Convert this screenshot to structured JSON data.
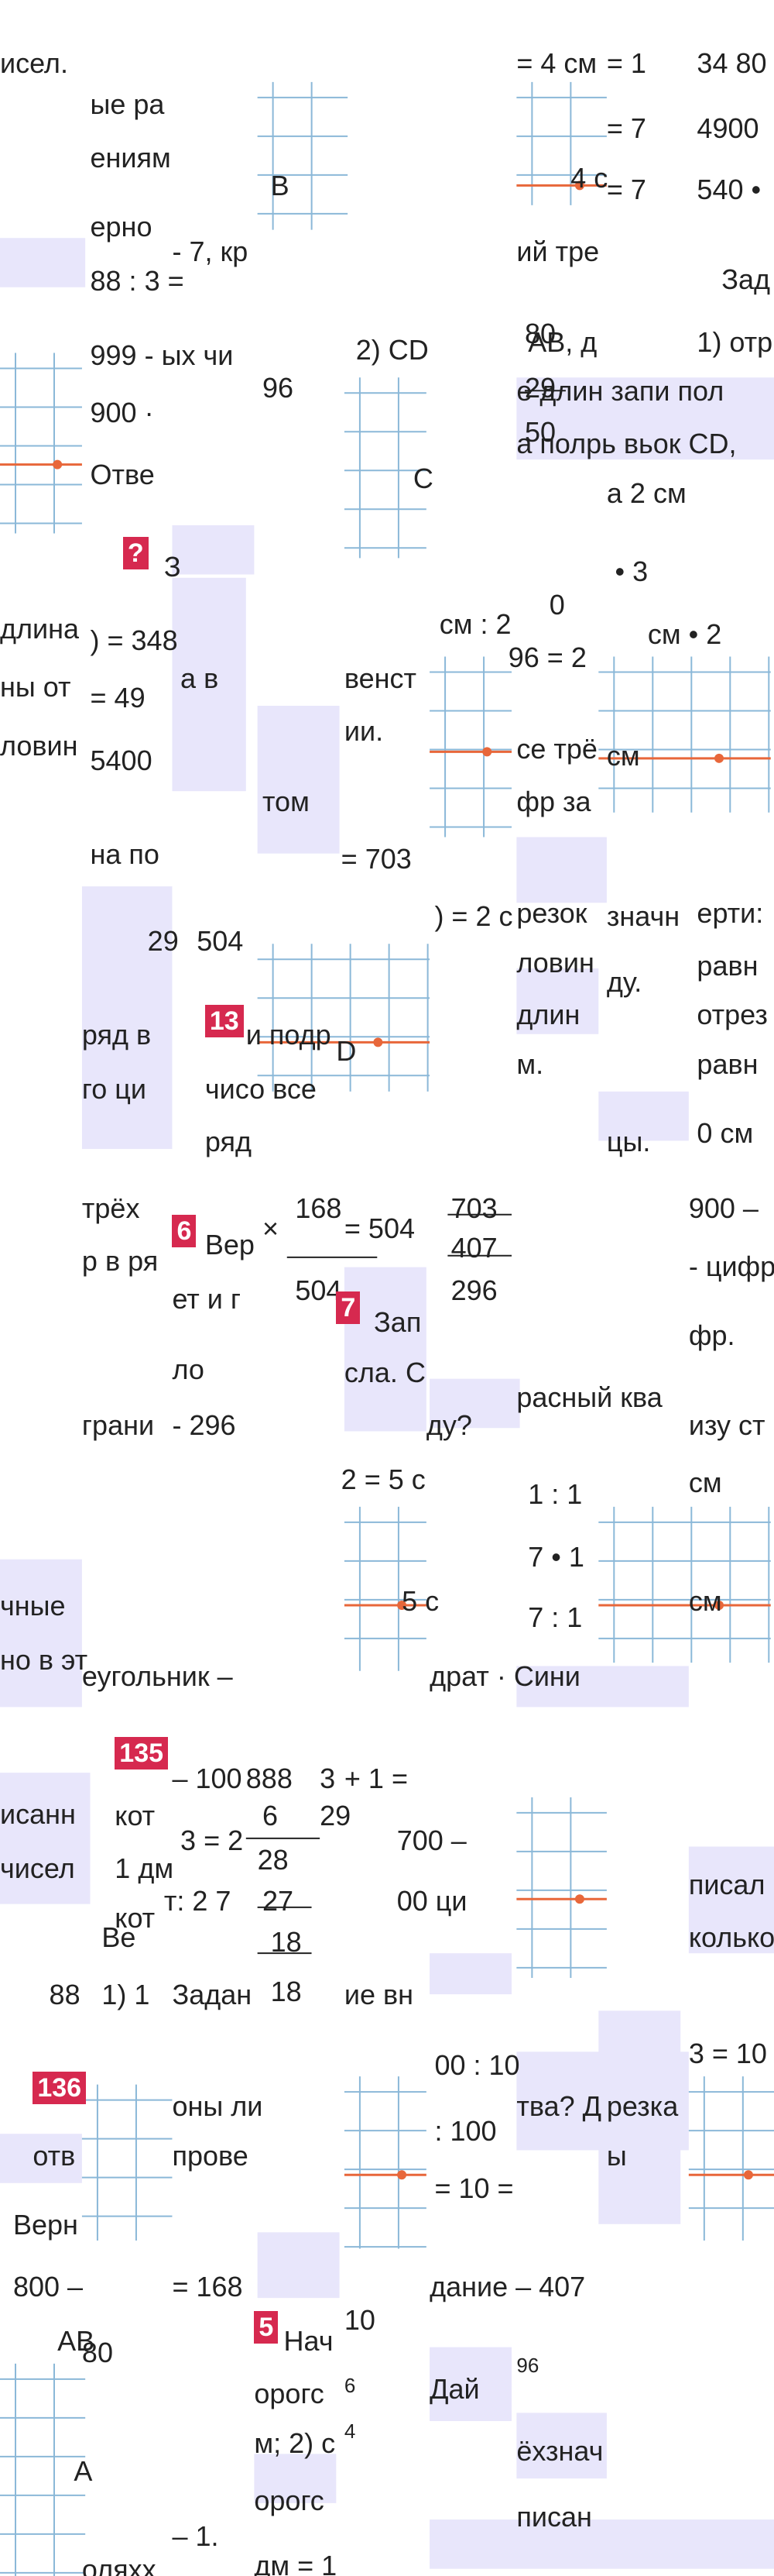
{
  "fragments": [
    "исел.",
    "ые ра",
    "ениям",
    "ерно",
    "88 : 3 =",
    "- 7, кр",
    "В",
    "= 4 см",
    "= 1",
    "34 80",
    "= 7",
    "4900",
    "4 с",
    "= 7",
    "540 •",
    "ий тре",
    "Зад",
    "999 - ых чи",
    "96",
    "2) CD",
    "80",
    "29",
    "50",
    "АВ, д",
    "1) отр",
    "е длин запи пол",
    "а полрь вьок CD,",
    "а 2 см",
    "900 ·",
    "Отве",
    "С",
    "З",
    "• 3",
    "0",
    "длина",
    ") = 348",
    "ны от",
    "а в",
    "= 49",
    "см : 2",
    "96 = 2",
    "см • 2",
    "венст",
    "ии.",
    "се трё",
    "фр за",
    "см",
    "ловин",
    "5400",
    "том",
    "на по",
    "= 703",
    ") = 2 с",
    "резок",
    "значн",
    "ерти:",
    "29",
    "504",
    "ловин",
    "ду.",
    "равн",
    "отрез",
    "ряд в",
    "и подр",
    "D",
    "длин",
    "м.",
    "равн",
    "го ци",
    "чисо все",
    "ряд",
    "цы.",
    "0 см",
    "трёх",
    "168",
    "703",
    "900 –",
    "Вер",
    "×",
    "= 504",
    "407",
    "р в ря",
    "ет и г",
    "504",
    "296",
    "- цифр",
    "Зап",
    "фр.",
    "ло",
    "сла. С",
    "грани",
    "- 296",
    "ду?",
    "расный ква",
    "изу ст",
    "см",
    "2 = 5 с",
    "1 : 1",
    "7 • 1",
    "7 : 1",
    "5 с",
    "см",
    "чные",
    "но в эт",
    "еугольник –",
    "драт · Сини",
    "– 100",
    "888",
    "3",
    "+ 1 =",
    "исанн",
    "кот",
    "3 = 2",
    "6",
    "29",
    "700 –",
    "28",
    "1 дм",
    "чисел",
    "т: 2 7",
    "27",
    "00 ци",
    "кот",
    "Ве",
    "18",
    "писал",
    "колько",
    "88",
    "1) 1",
    "Задан",
    "18",
    "ие вн",
    "оны ли",
    "00 : 10",
    "3 = 10",
    "тва? Д",
    "резка",
    ": 100",
    "ы",
    "отв",
    "прове",
    "= 10 =",
    "Верн",
    "800 –",
    "= 168",
    "дание – 407",
    "АВ",
    "80",
    "Нач",
    "10",
    "орогс",
    "6",
    "м; 2) с",
    "4",
    "Дай",
    "96",
    "ёхзнач",
    "писан",
    "А",
    "орогс",
    "– 1.",
    "оляхх",
    "дм = 1"
  ],
  "badges": [
    "?",
    "13",
    "6",
    "7",
    "135",
    "136",
    "5"
  ]
}
